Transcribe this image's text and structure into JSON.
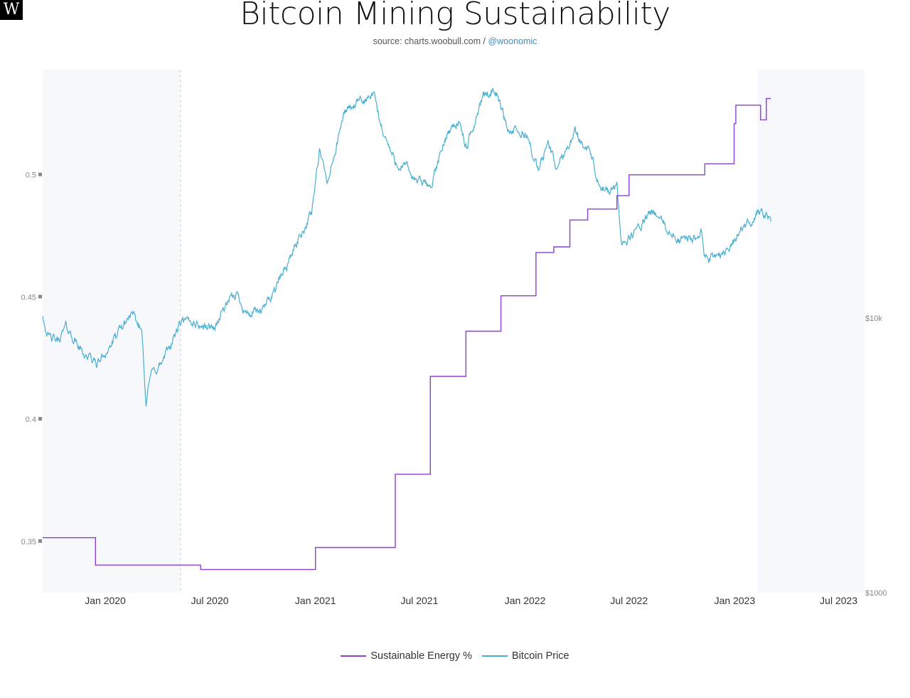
{
  "logo": "W",
  "title": "Bitcoin Mining Sustainability",
  "subtitle": {
    "source": "source: charts.woobull.com / ",
    "handle": "@woonomic"
  },
  "colors": {
    "sustainable": "#8b3fd6",
    "price": "#4aaecf",
    "shade": "#f7f8fc"
  },
  "chart_data": {
    "type": "line",
    "title": "Bitcoin Mining Sustainability",
    "x_range": [
      "2019-09-14",
      "2023-08-15"
    ],
    "x_ticks": [
      "Jan 2020",
      "Jul 2020",
      "Jan 2021",
      "Jul 2021",
      "Jan 2022",
      "Jul 2022",
      "Jan 2023",
      "Jul 2023"
    ],
    "y_left": {
      "range": [
        0.329,
        0.543
      ],
      "ticks": [
        "0.35",
        "0.4",
        "0.45",
        "0.5"
      ],
      "tick_values": [
        0.35,
        0.4,
        0.45,
        0.5
      ]
    },
    "y_right": {
      "scale": "log",
      "range": [
        1000,
        80000
      ],
      "ticks": [
        "$1000",
        "$10k"
      ],
      "tick_values": [
        1000,
        10000
      ]
    },
    "series": [
      {
        "name": "Sustainable Energy %",
        "axis": "left",
        "step": true,
        "points": [
          [
            "2019-09-14",
            0.3515
          ],
          [
            "2019-12-15",
            0.3515
          ],
          [
            "2019-12-15",
            0.3403
          ],
          [
            "2020-06-15",
            0.3403
          ],
          [
            "2020-06-15",
            0.3385
          ],
          [
            "2021-01-01",
            0.3385
          ],
          [
            "2021-01-01",
            0.3475
          ],
          [
            "2021-05-20",
            0.3475
          ],
          [
            "2021-05-20",
            0.3775
          ],
          [
            "2021-07-20",
            0.3775
          ],
          [
            "2021-07-20",
            0.4175
          ],
          [
            "2021-09-20",
            0.4175
          ],
          [
            "2021-09-20",
            0.436
          ],
          [
            "2021-11-20",
            0.436
          ],
          [
            "2021-11-20",
            0.4505
          ],
          [
            "2022-01-20",
            0.4505
          ],
          [
            "2022-01-20",
            0.4682
          ],
          [
            "2022-02-20",
            0.4682
          ],
          [
            "2022-02-20",
            0.4705
          ],
          [
            "2022-03-20",
            0.4705
          ],
          [
            "2022-03-20",
            0.4815
          ],
          [
            "2022-04-20",
            0.4815
          ],
          [
            "2022-04-20",
            0.486
          ],
          [
            "2022-06-10",
            0.486
          ],
          [
            "2022-06-10",
            0.4915
          ],
          [
            "2022-07-01",
            0.4915
          ],
          [
            "2022-07-01",
            0.5
          ],
          [
            "2022-11-10",
            0.5
          ],
          [
            "2022-11-10",
            0.5045
          ],
          [
            "2022-12-31",
            0.5045
          ],
          [
            "2022-12-31",
            0.521
          ],
          [
            "2023-01-03",
            0.521
          ],
          [
            "2023-01-03",
            0.5285
          ],
          [
            "2023-02-15",
            0.5285
          ],
          [
            "2023-02-15",
            0.5225
          ],
          [
            "2023-02-25",
            0.5225
          ],
          [
            "2023-02-25",
            0.5312
          ],
          [
            "2023-03-05",
            0.5312
          ]
        ]
      },
      {
        "name": "Bitcoin Price",
        "axis": "right",
        "points": [
          [
            "2019-09-14",
            10300
          ],
          [
            "2019-09-24",
            8500
          ],
          [
            "2019-10-10",
            8200
          ],
          [
            "2019-10-25",
            9300
          ],
          [
            "2019-11-20",
            7600
          ],
          [
            "2019-12-18",
            6800
          ],
          [
            "2020-01-10",
            7900
          ],
          [
            "2020-02-14",
            10300
          ],
          [
            "2020-03-05",
            9000
          ],
          [
            "2020-03-12",
            5000
          ],
          [
            "2020-03-20",
            6200
          ],
          [
            "2020-04-10",
            6900
          ],
          [
            "2020-05-10",
            9500
          ],
          [
            "2020-06-01",
            9700
          ],
          [
            "2020-06-20",
            9300
          ],
          [
            "2020-07-10",
            9250
          ],
          [
            "2020-07-27",
            11000
          ],
          [
            "2020-08-17",
            12200
          ],
          [
            "2020-09-05",
            10300
          ],
          [
            "2020-10-01",
            10600
          ],
          [
            "2020-10-25",
            13100
          ],
          [
            "2020-11-15",
            16000
          ],
          [
            "2020-12-01",
            19200
          ],
          [
            "2020-12-25",
            24000
          ],
          [
            "2021-01-08",
            40000
          ],
          [
            "2021-01-22",
            31000
          ],
          [
            "2021-02-10",
            45000
          ],
          [
            "2021-02-21",
            57000
          ],
          [
            "2021-03-15",
            60000
          ],
          [
            "2021-04-14",
            64000
          ],
          [
            "2021-04-25",
            50000
          ],
          [
            "2021-05-19",
            37000
          ],
          [
            "2021-06-10",
            35000
          ],
          [
            "2021-06-22",
            32000
          ],
          [
            "2021-07-20",
            30000
          ],
          [
            "2021-08-20",
            48000
          ],
          [
            "2021-09-07",
            52000
          ],
          [
            "2021-09-21",
            41000
          ],
          [
            "2021-10-20",
            65000
          ],
          [
            "2021-11-10",
            68000
          ],
          [
            "2021-12-04",
            48000
          ],
          [
            "2022-01-05",
            46000
          ],
          [
            "2022-01-24",
            34000
          ],
          [
            "2022-02-10",
            44000
          ],
          [
            "2022-02-24",
            35000
          ],
          [
            "2022-03-29",
            47500
          ],
          [
            "2022-04-25",
            40000
          ],
          [
            "2022-05-12",
            28500
          ],
          [
            "2022-06-10",
            29500
          ],
          [
            "2022-06-18",
            19000
          ],
          [
            "2022-07-01",
            19500
          ],
          [
            "2022-08-13",
            24500
          ],
          [
            "2022-09-20",
            19000
          ],
          [
            "2022-10-20",
            19200
          ],
          [
            "2022-11-05",
            21000
          ],
          [
            "2022-11-09",
            16500
          ],
          [
            "2022-12-15",
            17400
          ],
          [
            "2023-01-15",
            21000
          ],
          [
            "2023-02-16",
            24800
          ],
          [
            "2023-03-01",
            23200
          ],
          [
            "2023-03-05",
            22400
          ]
        ]
      }
    ],
    "shaded_regions": [
      {
        "from": "2019-09-14",
        "to": "2020-05-10"
      },
      {
        "from": "2023-02-10",
        "to": "2023-08-15"
      }
    ],
    "reference_lines": [
      {
        "x": "2020-05-11"
      }
    ],
    "legend": {
      "placement": "bottom-center",
      "entries": [
        "Sustainable Energy %",
        "Bitcoin Price"
      ]
    }
  }
}
